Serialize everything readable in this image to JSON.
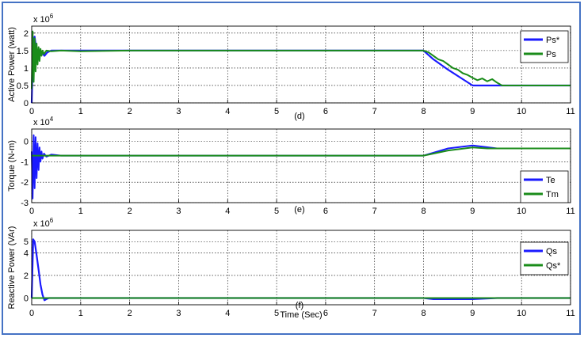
{
  "chart_data": [
    {
      "type": "line",
      "caption": "(d)",
      "ylabel": "Active Power (watt)",
      "y_exponent": "x 10",
      "y_exponent_power": "6",
      "xlim": [
        0,
        11
      ],
      "ylim": [
        0,
        2.2
      ],
      "xticks": [
        "0",
        "1",
        "2",
        "3",
        "4",
        "5",
        "6",
        "7",
        "8",
        "9",
        "10",
        "11"
      ],
      "yticks": [
        {
          "v": 0,
          "t": "0"
        },
        {
          "v": 0.5,
          "t": "0.5"
        },
        {
          "v": 1,
          "t": "1"
        },
        {
          "v": 1.5,
          "t": "1.5"
        },
        {
          "v": 2,
          "t": "2"
        }
      ],
      "grid": true,
      "legend_position": "top-right",
      "series": [
        {
          "name": "Ps*",
          "color": "#1a1aff",
          "width": 2.2,
          "x": [
            0,
            0.03,
            0.06,
            0.09,
            0.12,
            0.16,
            0.2,
            0.26,
            0.32,
            0.4,
            8.0,
            8.2,
            8.5,
            8.8,
            9.0,
            11
          ],
          "y": [
            0,
            1.75,
            1.9,
            1.55,
            1.4,
            1.5,
            1.45,
            1.35,
            1.45,
            1.5,
            1.5,
            1.25,
            0.95,
            0.68,
            0.5,
            0.5
          ]
        },
        {
          "name": "Ps",
          "color": "#1a8c1a",
          "width": 2.0,
          "x": [
            0,
            0.02,
            0.04,
            0.06,
            0.08,
            0.1,
            0.12,
            0.14,
            0.16,
            0.18,
            0.2,
            0.22,
            0.25,
            0.3,
            0.4,
            0.6,
            1.0,
            2.0,
            8.0,
            8.1,
            8.2,
            8.3,
            8.4,
            8.5,
            8.6,
            8.7,
            8.8,
            8.9,
            9.0,
            9.1,
            9.2,
            9.3,
            9.4,
            9.5,
            9.6,
            11
          ],
          "y": [
            0.4,
            2.05,
            0.6,
            1.85,
            0.9,
            1.7,
            1.1,
            1.6,
            1.2,
            1.55,
            1.35,
            1.5,
            1.4,
            1.5,
            1.48,
            1.5,
            1.48,
            1.5,
            1.5,
            1.45,
            1.35,
            1.25,
            1.2,
            1.1,
            1.0,
            0.95,
            0.85,
            0.8,
            0.72,
            0.65,
            0.7,
            0.62,
            0.68,
            0.58,
            0.5,
            0.5
          ]
        }
      ]
    },
    {
      "type": "line",
      "caption": "(e)",
      "ylabel": "Torque (N-m)",
      "y_exponent": "x 10",
      "y_exponent_power": "4",
      "xlim": [
        0,
        11
      ],
      "ylim": [
        -3,
        0.6
      ],
      "xticks": [
        "0",
        "1",
        "2",
        "3",
        "4",
        "5",
        "6",
        "7",
        "8",
        "9",
        "10",
        "11"
      ],
      "yticks": [
        {
          "v": 0,
          "t": "0"
        },
        {
          "v": -1,
          "t": "-1"
        },
        {
          "v": -2,
          "t": "-2"
        },
        {
          "v": -3,
          "t": "-3"
        }
      ],
      "grid": true,
      "legend_position": "bottom-right",
      "series": [
        {
          "name": "Te",
          "color": "#1a1aff",
          "width": 2.0,
          "x": [
            0,
            0.02,
            0.04,
            0.06,
            0.08,
            0.1,
            0.12,
            0.14,
            0.16,
            0.18,
            0.2,
            0.22,
            0.25,
            0.3,
            0.4,
            0.6,
            8.0,
            8.5,
            9.0,
            9.5,
            11
          ],
          "y": [
            -0.5,
            -2.8,
            0.3,
            -2.3,
            0.2,
            -1.8,
            -0.1,
            -1.4,
            -0.3,
            -1.0,
            -0.5,
            -0.85,
            -0.6,
            -0.75,
            -0.65,
            -0.7,
            -0.7,
            -0.35,
            -0.2,
            -0.35,
            -0.35
          ]
        },
        {
          "name": "Tm",
          "color": "#1a8c1a",
          "width": 2.0,
          "x": [
            0,
            0.3,
            0.4,
            8.0,
            8.5,
            9.0,
            9.3,
            9.6,
            11
          ],
          "y": [
            -0.7,
            -0.7,
            -0.7,
            -0.7,
            -0.45,
            -0.3,
            -0.35,
            -0.35,
            -0.35
          ]
        }
      ]
    },
    {
      "type": "line",
      "caption": "(f)",
      "ylabel": "Reactive Power (VAr)",
      "y_exponent": "x 10",
      "y_exponent_power": "6",
      "xlabel": "Time (Sec)",
      "xlim": [
        0,
        11
      ],
      "ylim": [
        -0.6,
        6
      ],
      "xticks": [
        "0",
        "1",
        "2",
        "3",
        "4",
        "5",
        "6",
        "7",
        "8",
        "9",
        "10",
        "11"
      ],
      "yticks": [
        {
          "v": 0,
          "t": "0"
        },
        {
          "v": 2,
          "t": "2"
        },
        {
          "v": 4,
          "t": "4"
        },
        {
          "v": 5,
          "t": "5"
        }
      ],
      "grid": true,
      "legend_position": "top-right",
      "series": [
        {
          "name": "Qs",
          "color": "#1a1aff",
          "width": 2.2,
          "x": [
            0,
            0.03,
            0.06,
            0.1,
            0.14,
            0.18,
            0.22,
            0.26,
            0.3,
            0.35,
            0.45,
            8.0,
            8.2,
            9.0,
            9.5,
            11
          ],
          "y": [
            0,
            5.2,
            5.0,
            3.8,
            2.5,
            1.2,
            0.3,
            -0.2,
            -0.1,
            0,
            0,
            0,
            -0.1,
            -0.1,
            0,
            0
          ]
        },
        {
          "name": "Qs*",
          "color": "#1a8c1a",
          "width": 2.0,
          "x": [
            0,
            11
          ],
          "y": [
            0,
            0
          ]
        }
      ]
    }
  ]
}
